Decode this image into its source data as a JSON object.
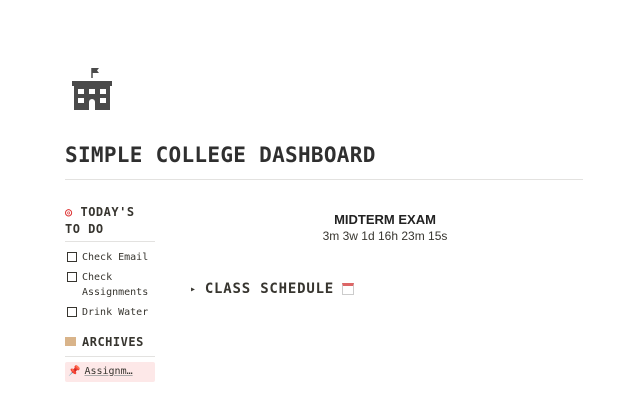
{
  "page": {
    "icon": "school-building-icon",
    "title": "SIMPLE COLLEGE DASHBOARD"
  },
  "todo": {
    "icon": "target-icon",
    "heading": "TODAY'S TO DO",
    "items": [
      {
        "label": "Check Email",
        "checked": false
      },
      {
        "label": "Check Assignments",
        "checked": false
      },
      {
        "label": "Drink Water",
        "checked": false
      }
    ]
  },
  "archives": {
    "icon": "file-cabinet-icon",
    "heading": "ARCHIVES",
    "items": [
      {
        "icon": "pushpin-icon",
        "label": "Assignm…"
      }
    ]
  },
  "countdown": {
    "title": "MIDTERM EXAM",
    "value": "3m 3w 1d 16h 23m 15s"
  },
  "schedule": {
    "toggle": "▸",
    "label": "CLASS SCHEDULE",
    "icon": "calendar-icon"
  }
}
